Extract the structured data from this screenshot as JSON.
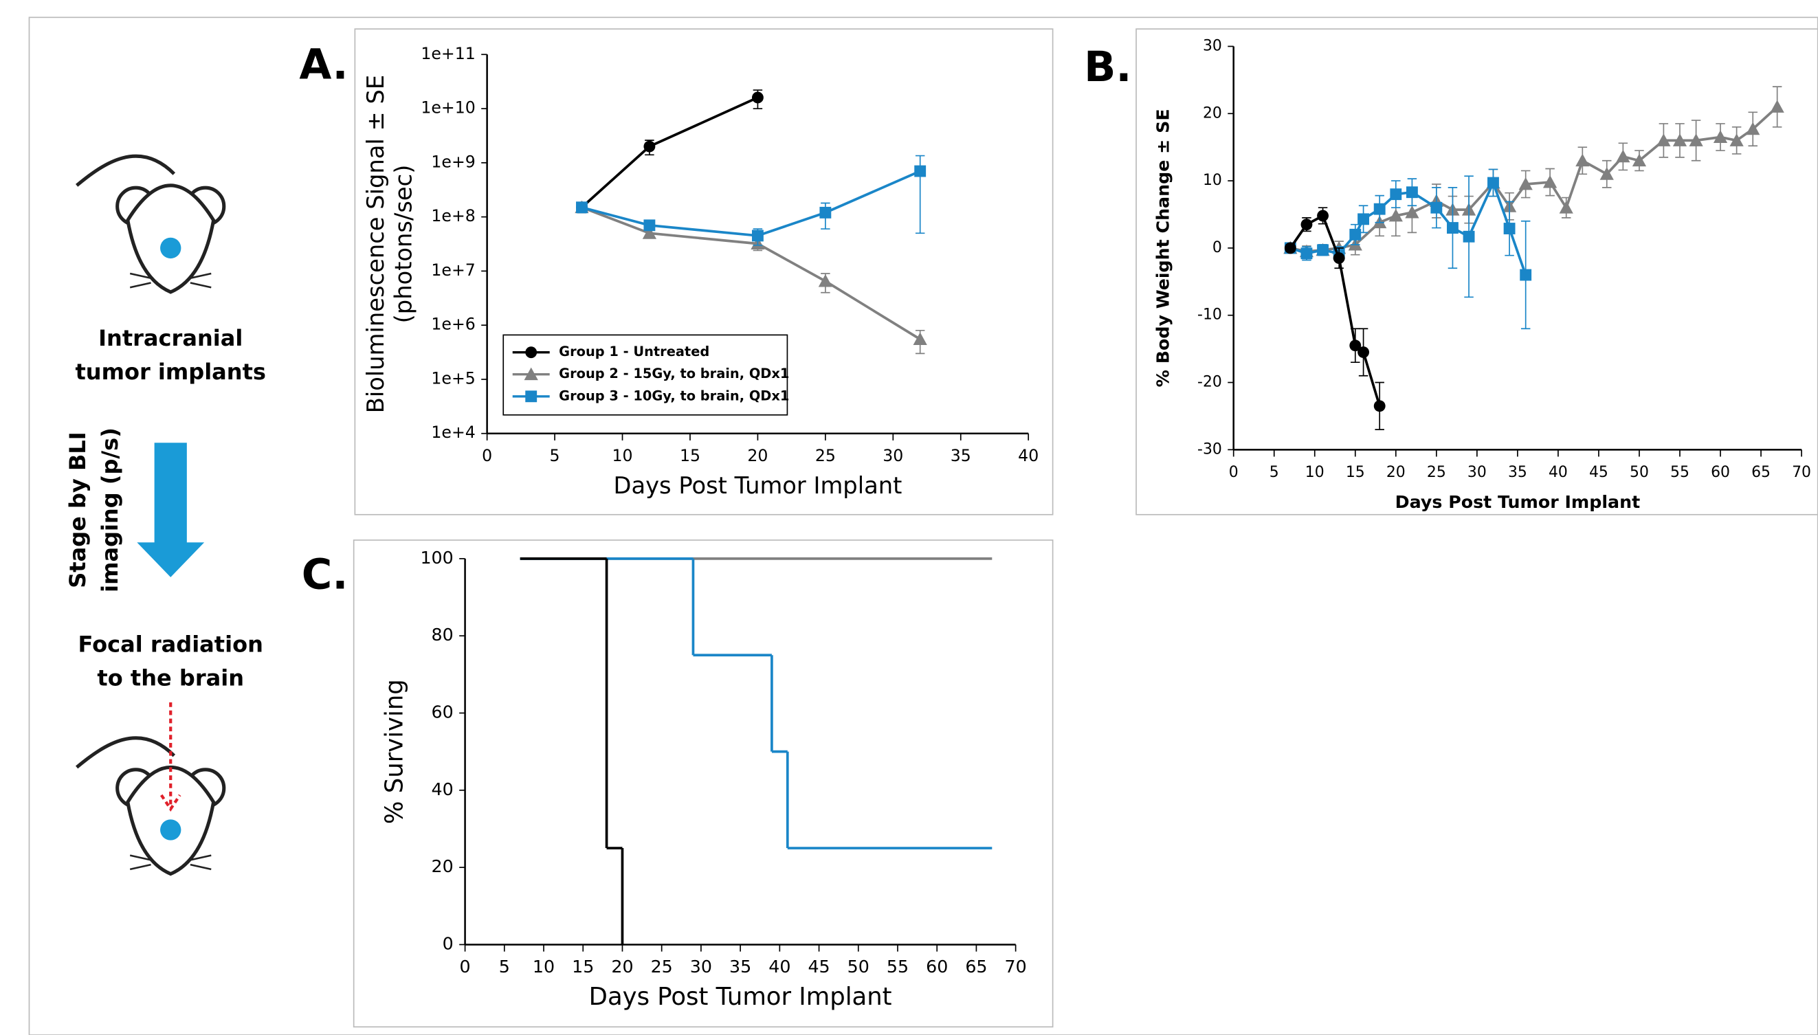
{
  "panel_text": {
    "implant": [
      "Intracranial",
      "tumor implants"
    ],
    "stage": [
      "Stage by BLI",
      "imaging (p/s)"
    ],
    "radiation": [
      "Focal radiation",
      "to the brain"
    ],
    "labels": [
      "A.",
      "B.",
      "C."
    ]
  },
  "chart_data": [
    {
      "type": "line",
      "ylabel": [
        "Bioluminescence Signal ± SE",
        "(photons/sec)"
      ],
      "xlabel": "Days Post Tumor Implant",
      "log_y": true,
      "legend": "lower left",
      "xlim": [
        0,
        40
      ],
      "xticks": [
        0,
        5,
        10,
        15,
        20,
        25,
        30,
        35,
        40
      ],
      "ylim": [
        10000,
        100000000000
      ],
      "yticks": [
        {
          "value": 10000,
          "label": "1e+4"
        },
        {
          "value": 100000,
          "label": "1e+5"
        },
        {
          "value": 1000000,
          "label": "1e+6"
        },
        {
          "value": 10000000,
          "label": "1e+7"
        },
        {
          "value": 100000000,
          "label": "1e+8"
        },
        {
          "value": 1000000000,
          "label": "1e+9"
        },
        {
          "value": 10000000000,
          "label": "1e+10"
        },
        {
          "value": 100000000000,
          "label": "1e+11"
        }
      ],
      "series": [
        {
          "name": "Group 1 - Untreated",
          "color": "#000000",
          "marker": "circle",
          "x": [
            7,
            12,
            20
          ],
          "values": [
            150000000,
            2000000000,
            16000000000
          ],
          "errors": [
            30000000,
            600000000,
            6000000000
          ]
        },
        {
          "name": "Group 2 - 15Gy, to brain, QDx1",
          "color": "#808080",
          "marker": "triangle",
          "x": [
            7,
            12,
            20,
            25,
            32
          ],
          "values": [
            150000000,
            50000000,
            32000000,
            6500000,
            550000
          ],
          "errors": [
            30000000,
            8000000,
            8000000,
            2500000,
            250000
          ]
        },
        {
          "name": "Group 3 - 10Gy, to brain, QDx1",
          "color": "#1a86c8",
          "marker": "square",
          "x": [
            7,
            12,
            20,
            25,
            32
          ],
          "values": [
            150000000,
            70000000,
            45000000,
            120000000,
            700000000
          ],
          "errors": [
            30000000,
            12000000,
            15000000,
            60000000,
            650000000
          ]
        }
      ]
    },
    {
      "type": "line",
      "ylabel": "% Body Weight Change ± SE",
      "xlabel": "Days Post Tumor Implant",
      "xlim": [
        0,
        70
      ],
      "xticks": [
        0,
        5,
        10,
        15,
        20,
        25,
        30,
        35,
        40,
        45,
        50,
        55,
        60,
        65,
        70
      ],
      "ylim": [
        -30,
        30
      ],
      "yticks": [
        -30,
        -20,
        -10,
        0,
        10,
        20,
        30
      ],
      "series": [
        {
          "color": "#808080",
          "marker": "triangle",
          "x": [
            7,
            9,
            11,
            13,
            15,
            18,
            20,
            22,
            25,
            27,
            29,
            32,
            34,
            36,
            39,
            41,
            43,
            46,
            48,
            50,
            53,
            55,
            57,
            60,
            62,
            64,
            67
          ],
          "values": [
            0,
            -0.5,
            -0.3,
            0,
            0.5,
            3.8,
            4.8,
            5.3,
            7,
            5.7,
            5.7,
            9.7,
            6.2,
            9.5,
            9.8,
            6,
            13,
            11,
            13.6,
            13,
            16,
            16,
            16,
            16.5,
            16,
            17.7,
            21
          ],
          "errors": [
            0.5,
            0.8,
            0.8,
            1,
            1.5,
            2,
            3,
            3,
            2.5,
            2,
            2,
            2,
            2,
            2,
            2,
            1.5,
            2,
            2,
            2,
            1.5,
            2.5,
            2.5,
            3,
            2,
            2,
            2.5,
            3
          ]
        },
        {
          "color": "#1a86c8",
          "marker": "square",
          "x": [
            7,
            9,
            11,
            13,
            15,
            16,
            18,
            20,
            22,
            25,
            27,
            29,
            32,
            34,
            36
          ],
          "values": [
            0,
            -0.8,
            -0.3,
            -0.8,
            2,
            4.3,
            5.8,
            8,
            8.3,
            6,
            3,
            1.7,
            9.7,
            2.9,
            -4
          ],
          "errors": [
            0.5,
            1,
            0.8,
            1,
            1.5,
            2,
            2,
            2,
            2,
            3,
            6,
            9,
            2,
            4,
            8
          ]
        },
        {
          "color": "#000000",
          "marker": "circle",
          "x": [
            7,
            9,
            11,
            13,
            15,
            16,
            18
          ],
          "values": [
            0,
            3.5,
            4.8,
            -1.5,
            -14.5,
            -15.5,
            -23.5
          ],
          "errors": [
            0.5,
            1,
            1.2,
            1.5,
            2.5,
            3.5,
            3.5
          ]
        }
      ]
    },
    {
      "type": "step",
      "ylabel": "% Surviving",
      "xlabel": "Days Post Tumor Implant",
      "xlim": [
        0,
        70
      ],
      "xticks": [
        0,
        5,
        10,
        15,
        20,
        25,
        30,
        35,
        40,
        45,
        50,
        55,
        60,
        65,
        70
      ],
      "ylim": [
        0,
        100
      ],
      "yticks": [
        0,
        20,
        40,
        60,
        80,
        100
      ],
      "series": [
        {
          "color": "#808080",
          "x": [
            7,
            67
          ],
          "values": [
            100,
            100
          ]
        },
        {
          "color": "#1a86c8",
          "x": [
            7,
            29,
            39,
            41,
            67
          ],
          "values": [
            100,
            75,
            50,
            25,
            25
          ]
        },
        {
          "color": "#000000",
          "x": [
            7,
            18,
            20
          ],
          "values": [
            100,
            25,
            0
          ]
        }
      ]
    }
  ]
}
